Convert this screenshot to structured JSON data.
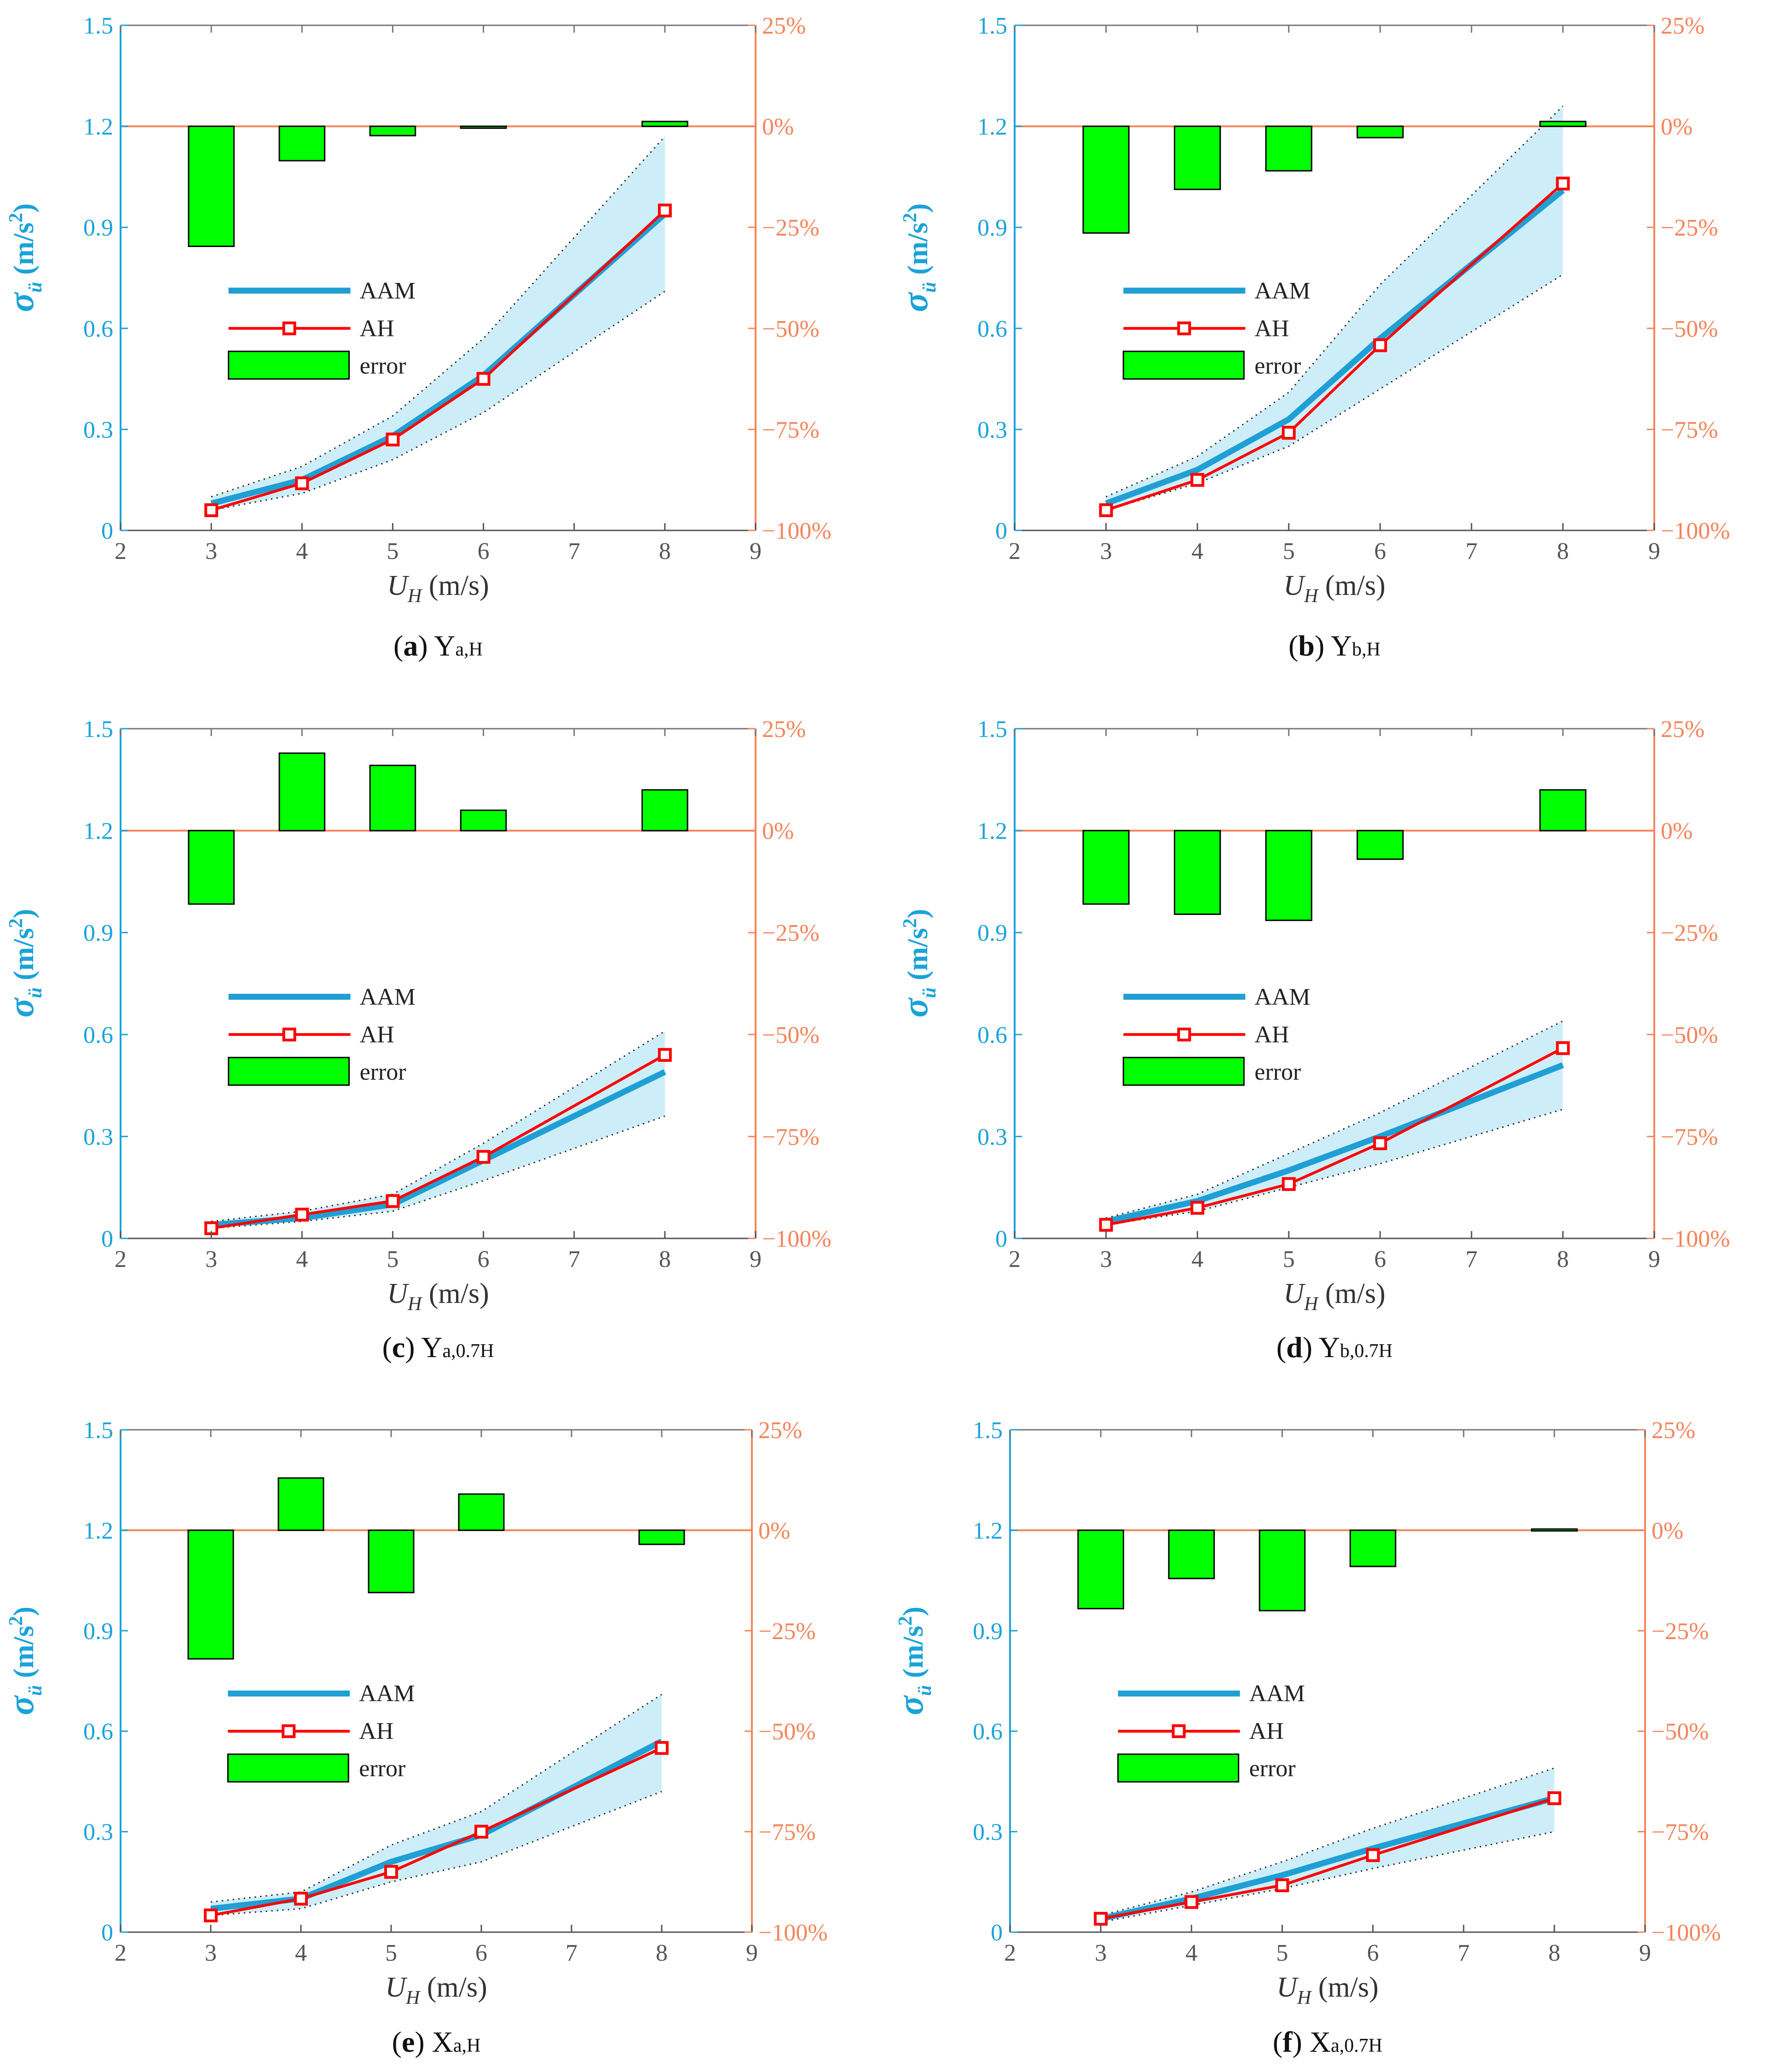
{
  "colors": {
    "aam": "#1f9fd4",
    "ah": "#ff0000",
    "error_fill": "#00ff00",
    "band": "#cdeef9",
    "left_axis": "#1aa3d9",
    "right_axis": "#f5845a",
    "zero_line": "#f5845a"
  },
  "chart_data": [
    {
      "id": "a",
      "type": "line",
      "letter": "a",
      "caption_main": "Y",
      "caption_sub": "a,H",
      "ylabel_symbol": "σ",
      "ylabel_sub": "ü",
      "ylabel_unit": "(m/s",
      "ylabel_sup": "2",
      "ylabel_close": ")",
      "xlabel_symbol": "U",
      "xlabel_sub": "H",
      "xlabel_unit": "(m/s)",
      "xlim": [
        2,
        9
      ],
      "ylim": [
        0,
        1.5
      ],
      "y2lim": [
        -1,
        0.25
      ],
      "xticks": [
        "2",
        "3",
        "4",
        "5",
        "6",
        "7",
        "8",
        "9"
      ],
      "yticks": [
        "0",
        "0.3",
        "0.6",
        "0.9",
        "1.2",
        "1.5"
      ],
      "y2ticks": [
        "−100%",
        "−75%",
        "−50%",
        "−25%",
        "0%",
        "25%"
      ],
      "legend": [
        "AAM",
        "AH",
        "error"
      ],
      "x": [
        3,
        4,
        5,
        6,
        8
      ],
      "series": [
        {
          "name": "AAM",
          "values": [
            0.08,
            0.15,
            0.28,
            0.46,
            0.94
          ]
        },
        {
          "name": "AH",
          "values": [
            0.06,
            0.14,
            0.27,
            0.45,
            0.95
          ]
        }
      ],
      "band_upper": [
        0.1,
        0.19,
        0.34,
        0.57,
        1.17
      ],
      "band_lower": [
        0.06,
        0.11,
        0.21,
        0.35,
        0.71
      ],
      "error_pct": [
        -29.7,
        -8.5,
        -2.3,
        -0.3,
        1.2
      ]
    },
    {
      "id": "b",
      "type": "line",
      "letter": "b",
      "caption_main": "Y",
      "caption_sub": "b,H",
      "ylabel_symbol": "σ",
      "ylabel_sub": "ü",
      "ylabel_unit": "(m/s",
      "ylabel_sup": "2",
      "ylabel_close": ")",
      "xlabel_symbol": "U",
      "xlabel_sub": "H",
      "xlabel_unit": "(m/s)",
      "xlim": [
        2,
        9
      ],
      "ylim": [
        0,
        1.5
      ],
      "y2lim": [
        -1,
        0.25
      ],
      "xticks": [
        "2",
        "3",
        "4",
        "5",
        "6",
        "7",
        "8",
        "9"
      ],
      "yticks": [
        "0",
        "0.3",
        "0.6",
        "0.9",
        "1.2",
        "1.5"
      ],
      "y2ticks": [
        "−100%",
        "−75%",
        "−50%",
        "−25%",
        "0%",
        "25%"
      ],
      "legend": [
        "AAM",
        "AH",
        "error"
      ],
      "x": [
        3,
        4,
        5,
        6,
        8
      ],
      "series": [
        {
          "name": "AAM",
          "values": [
            0.08,
            0.18,
            0.33,
            0.57,
            1.01
          ]
        },
        {
          "name": "AH",
          "values": [
            0.06,
            0.15,
            0.29,
            0.55,
            1.03
          ]
        }
      ],
      "band_upper": [
        0.1,
        0.22,
        0.41,
        0.73,
        1.26
      ],
      "band_lower": [
        0.06,
        0.14,
        0.25,
        0.42,
        0.76
      ],
      "error_pct": [
        -26.4,
        -15.6,
        -11.0,
        -2.8,
        1.2
      ]
    },
    {
      "id": "c",
      "type": "line",
      "letter": "c",
      "caption_main": "Y",
      "caption_sub": "a,0.7H",
      "ylabel_symbol": "σ",
      "ylabel_sub": "ü",
      "ylabel_unit": "(m/s",
      "ylabel_sup": "2",
      "ylabel_close": ")",
      "xlabel_symbol": "U",
      "xlabel_sub": "H",
      "xlabel_unit": "(m/s)",
      "xlim": [
        2,
        9
      ],
      "ylim": [
        0,
        1.5
      ],
      "y2lim": [
        -1,
        0.25
      ],
      "xticks": [
        "2",
        "3",
        "4",
        "5",
        "6",
        "7",
        "8",
        "9"
      ],
      "yticks": [
        "0",
        "0.3",
        "0.6",
        "0.9",
        "1.2",
        "1.5"
      ],
      "y2ticks": [
        "−100%",
        "−75%",
        "−50%",
        "−25%",
        "0%",
        "25%"
      ],
      "legend": [
        "AAM",
        "AH",
        "error"
      ],
      "x": [
        3,
        4,
        5,
        6,
        8
      ],
      "series": [
        {
          "name": "AAM",
          "values": [
            0.04,
            0.06,
            0.1,
            0.23,
            0.49
          ]
        },
        {
          "name": "AH",
          "values": [
            0.03,
            0.07,
            0.11,
            0.24,
            0.54
          ]
        }
      ],
      "band_upper": [
        0.05,
        0.08,
        0.13,
        0.28,
        0.61
      ],
      "band_lower": [
        0.03,
        0.05,
        0.08,
        0.17,
        0.36
      ],
      "error_pct": [
        -18.0,
        19.0,
        16.0,
        5.0,
        10.0
      ]
    },
    {
      "id": "d",
      "type": "line",
      "letter": "d",
      "caption_main": "Y",
      "caption_sub": "b,0.7H",
      "ylabel_symbol": "σ",
      "ylabel_sub": "ü",
      "ylabel_unit": "(m/s",
      "ylabel_sup": "2",
      "ylabel_close": ")",
      "xlabel_symbol": "U",
      "xlabel_sub": "H",
      "xlabel_unit": "(m/s)",
      "xlim": [
        2,
        9
      ],
      "ylim": [
        0,
        1.5
      ],
      "y2lim": [
        -1,
        0.25
      ],
      "xticks": [
        "2",
        "3",
        "4",
        "5",
        "6",
        "7",
        "8",
        "9"
      ],
      "yticks": [
        "0",
        "0.3",
        "0.6",
        "0.9",
        "1.2",
        "1.5"
      ],
      "y2ticks": [
        "−100%",
        "−75%",
        "−50%",
        "−25%",
        "0%",
        "25%"
      ],
      "legend": [
        "AAM",
        "AH",
        "error"
      ],
      "x": [
        3,
        4,
        5,
        6,
        8
      ],
      "series": [
        {
          "name": "AAM",
          "values": [
            0.05,
            0.11,
            0.2,
            0.3,
            0.51
          ]
        },
        {
          "name": "AH",
          "values": [
            0.04,
            0.09,
            0.16,
            0.28,
            0.56
          ]
        }
      ],
      "band_upper": [
        0.06,
        0.13,
        0.25,
        0.37,
        0.64
      ],
      "band_lower": [
        0.04,
        0.08,
        0.15,
        0.22,
        0.38
      ],
      "error_pct": [
        -18.0,
        -20.5,
        -22.0,
        -7.0,
        10.0
      ]
    },
    {
      "id": "e",
      "type": "line",
      "letter": "e",
      "caption_main": "X",
      "caption_sub": "a,H",
      "ylabel_symbol": "σ",
      "ylabel_sub": "ü",
      "ylabel_unit": "(m/s",
      "ylabel_sup": "2",
      "ylabel_close": ")",
      "xlabel_symbol": "U",
      "xlabel_sub": "H",
      "xlabel_unit": "(m/s)",
      "xlim": [
        2,
        9
      ],
      "ylim": [
        0,
        1.5
      ],
      "y2lim": [
        -1,
        0.25
      ],
      "xticks": [
        "2",
        "3",
        "4",
        "5",
        "6",
        "7",
        "8",
        "9"
      ],
      "yticks": [
        "0",
        "0.3",
        "0.6",
        "0.9",
        "1.2",
        "1.5"
      ],
      "y2ticks": [
        "−100%",
        "−75%",
        "−50%",
        "−25%",
        "0%",
        "25%"
      ],
      "legend": [
        "AAM",
        "AH",
        "error"
      ],
      "x": [
        3,
        4,
        5,
        6,
        8
      ],
      "series": [
        {
          "name": "AAM",
          "values": [
            0.07,
            0.1,
            0.21,
            0.29,
            0.57
          ]
        },
        {
          "name": "AH",
          "values": [
            0.05,
            0.1,
            0.18,
            0.3,
            0.55
          ]
        }
      ],
      "band_upper": [
        0.09,
        0.12,
        0.26,
        0.36,
        0.71
      ],
      "band_lower": [
        0.05,
        0.07,
        0.15,
        0.21,
        0.42
      ],
      "error_pct": [
        -32.0,
        13.0,
        -15.5,
        9.0,
        -3.5
      ]
    },
    {
      "id": "f",
      "type": "line",
      "letter": "f",
      "caption_main": "X",
      "caption_sub": "a,0.7H",
      "ylabel_symbol": "σ",
      "ylabel_sub": "ü",
      "ylabel_unit": "(m/s",
      "ylabel_sup": "2",
      "ylabel_close": ")",
      "xlabel_symbol": "U",
      "xlabel_sub": "H",
      "xlabel_unit": "(m/s)",
      "xlim": [
        2,
        9
      ],
      "ylim": [
        0,
        1.5
      ],
      "y2lim": [
        -1,
        0.25
      ],
      "xticks": [
        "2",
        "3",
        "4",
        "5",
        "6",
        "7",
        "8",
        "9"
      ],
      "yticks": [
        "0",
        "0.3",
        "0.6",
        "0.9",
        "1.2",
        "1.5"
      ],
      "y2ticks": [
        "−100%",
        "−75%",
        "−50%",
        "−25%",
        "0%",
        "25%"
      ],
      "legend": [
        "AAM",
        "AH",
        "error"
      ],
      "x": [
        3,
        4,
        5,
        6,
        8
      ],
      "series": [
        {
          "name": "AAM",
          "values": [
            0.04,
            0.1,
            0.17,
            0.25,
            0.4
          ]
        },
        {
          "name": "AH",
          "values": [
            0.04,
            0.09,
            0.14,
            0.23,
            0.4
          ]
        }
      ],
      "band_upper": [
        0.05,
        0.12,
        0.21,
        0.31,
        0.49
      ],
      "band_lower": [
        0.03,
        0.08,
        0.13,
        0.19,
        0.3
      ],
      "error_pct": [
        -19.5,
        -12.0,
        -20.0,
        -9.0,
        0.3
      ]
    }
  ]
}
